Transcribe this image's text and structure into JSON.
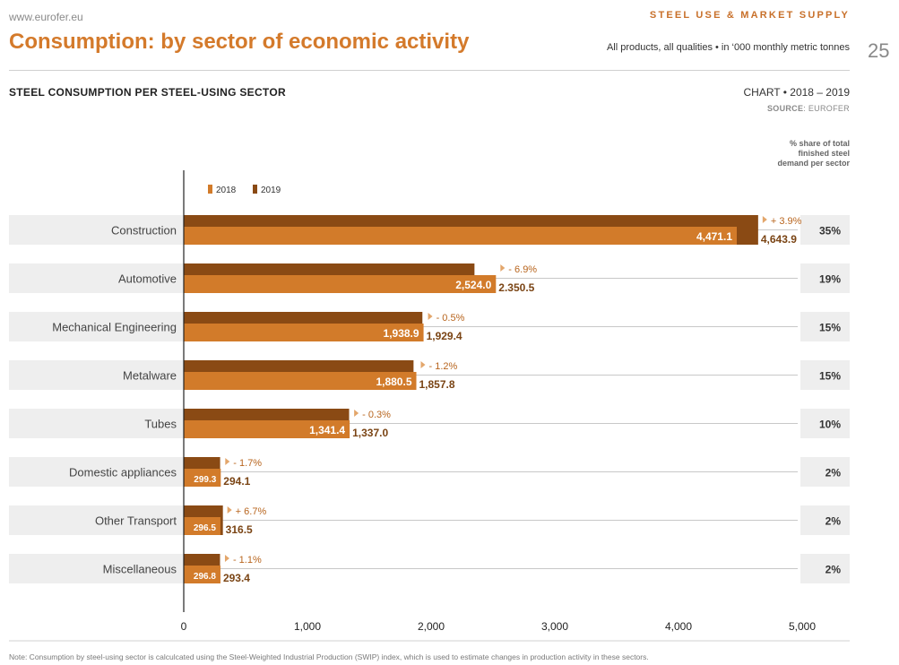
{
  "header": {
    "site": "www.eurofer.eu",
    "section": "STEEL USE & MARKET SUPPLY",
    "title": "Consumption: by sector of economic activity",
    "subtitle": "All products, all qualities • in ‘000 monthly metric tonnes",
    "page_number": "25"
  },
  "chart_header": {
    "title": "STEEL CONSUMPTION PER STEEL-USING SECTOR",
    "range": "CHART • 2018 – 2019",
    "source_label": "SOURCE",
    "source_value": ": EUROFER"
  },
  "share_header": "% share of total finished steel demand per sector",
  "note": "Note: Consumption by steel-using sector is calculcated using the Steel-Weighted Industrial Production (SWIP) index, which is used to estimate changes in production activity in these sectors.",
  "colors": {
    "y2018": "#d27b2a",
    "y2019": "#8a4a14",
    "band": "#eeeeee",
    "accent": "#d47a2b"
  },
  "chart_data": {
    "type": "bar",
    "orientation": "horizontal",
    "categories": [
      "Construction",
      "Automotive",
      "Mechanical Engineering",
      "Metalware",
      "Tubes",
      "Domestic appliances",
      "Other Transport",
      "Miscellaneous"
    ],
    "series": [
      {
        "name": "2018",
        "values": [
          4471.1,
          2524.0,
          1938.9,
          1880.5,
          1341.4,
          299.3,
          296.5,
          296.8
        ],
        "labels": [
          "4,471.1",
          "2,524.0",
          "1,938.9",
          "1,880.5",
          "1,341.4",
          "299.3",
          "296.5",
          "296.8"
        ]
      },
      {
        "name": "2019",
        "values": [
          4643.9,
          2350.5,
          1929.4,
          1857.8,
          1337.0,
          294.1,
          316.5,
          293.4
        ],
        "labels": [
          "4,643.9",
          "2.350.5",
          "1,929.4",
          "1,857.8",
          "1,337.0",
          "294.1",
          "316.5",
          "293.4"
        ]
      }
    ],
    "changes": [
      "+ 3.9%",
      "- 6.9%",
      "- 0.5%",
      "- 1.2%",
      "- 0.3%",
      "- 1.7%",
      "+ 6.7%",
      "- 1.1%"
    ],
    "shares": [
      "35%",
      "19%",
      "15%",
      "15%",
      "10%",
      "2%",
      "2%",
      "2%"
    ],
    "xlim": [
      0,
      5000
    ],
    "xticks": [
      0,
      1000,
      2000,
      3000,
      4000,
      5000
    ],
    "xtick_labels": [
      "0",
      "1,000",
      "2,000",
      "3,000",
      "4,000",
      "5,000"
    ],
    "legend": [
      "2018",
      "2019"
    ],
    "legend_position": "top-left"
  }
}
